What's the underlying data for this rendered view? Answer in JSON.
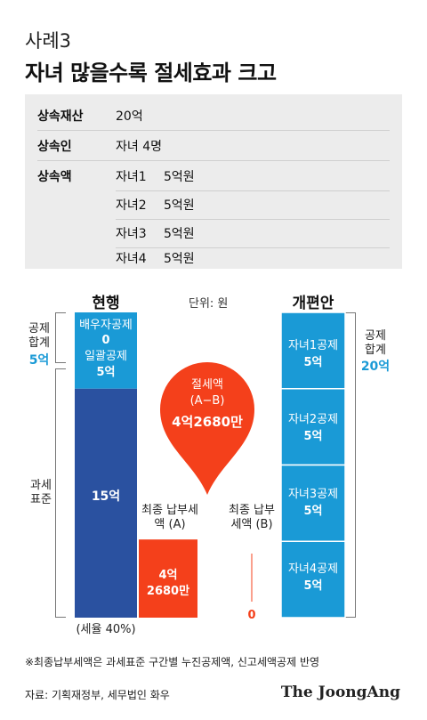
{
  "subtitle": "사례3",
  "title": "자녀 많을수록 절세효과 크고",
  "info": {
    "rows": [
      {
        "label": "상속재산",
        "value": "20억"
      },
      {
        "label": "상속인",
        "value": "자녀 4명"
      }
    ],
    "inherit_label": "상속액",
    "children": [
      {
        "name": "자녀1",
        "amount": "5억원"
      },
      {
        "name": "자녀2",
        "amount": "5억원"
      },
      {
        "name": "자녀3",
        "amount": "5억원"
      },
      {
        "name": "자녀4",
        "amount": "5억원"
      }
    ]
  },
  "chart_data": {
    "type": "bar",
    "unit_label": "단위: 원",
    "current": {
      "header": "현행",
      "deduction_label_1": "배우자공제",
      "deduction_value_1": "0",
      "deduction_label_2": "일괄공제",
      "deduction_value_2": "5억",
      "deduction_total_label": "공제 합계",
      "deduction_total_value": "5억",
      "tax_base_label": "과세 표준",
      "tax_base_value": "15억",
      "tax_rate_note": "(세율 40%)",
      "segments": [
        {
          "name": "공제",
          "value": 5
        },
        {
          "name": "과세표준",
          "value": 15
        }
      ]
    },
    "reform": {
      "header": "개편안",
      "deduction_total_label": "공제 합계",
      "deduction_total_value": "20억",
      "segments": [
        {
          "label": "자녀1공제",
          "value_label": "5억",
          "value": 5
        },
        {
          "label": "자녀2공제",
          "value_label": "5억",
          "value": 5
        },
        {
          "label": "자녀3공제",
          "value_label": "5억",
          "value": 5
        },
        {
          "label": "자녀4공제",
          "value_label": "5억",
          "value": 5
        }
      ]
    },
    "final_tax": {
      "a_label": "최종 납부세액 (A)",
      "a_value_line1": "4억",
      "a_value_line2": "2680만",
      "a_value": 4.268,
      "b_label": "최종 납부세액 (B)",
      "b_value_label": "0",
      "b_value": 0
    },
    "savings": {
      "label": "절세액",
      "formula": "(A−B)",
      "value": "4억2680만"
    },
    "colors": {
      "deduction": "#1a9ad6",
      "tax_base": "#2a51a0",
      "tax": "#f4401b",
      "bracket": "#777777"
    }
  },
  "footnote": "※최종납부세액은 과세표준 구간별 누진공제액, 신고세액공제 반영",
  "source": "자료: 기획재정부, 세무법인 화우",
  "brand": "The JoongAng"
}
